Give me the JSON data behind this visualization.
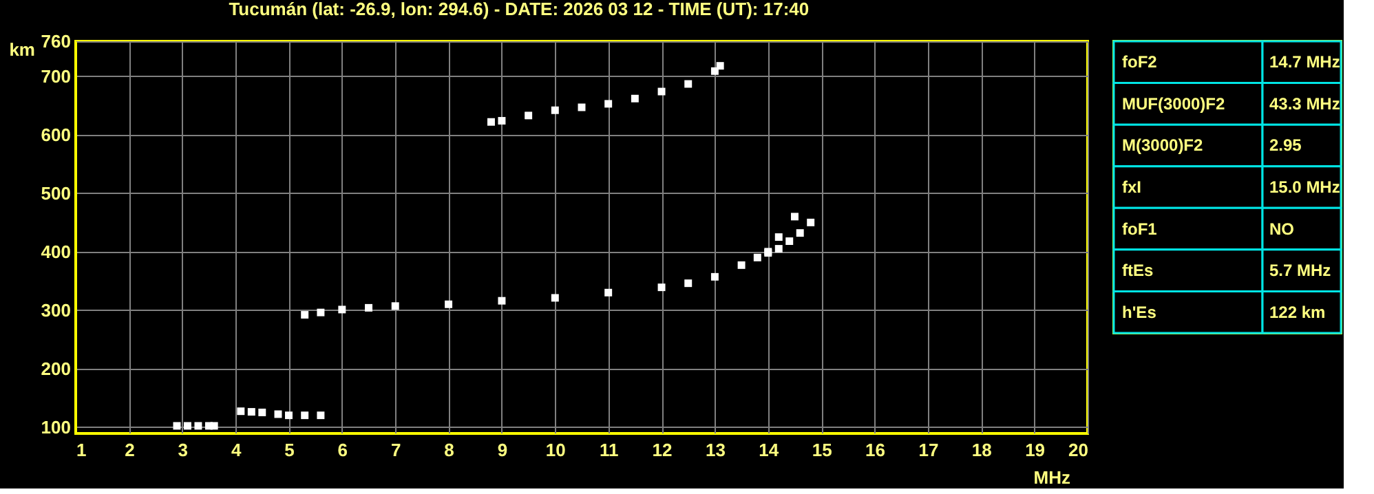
{
  "chart_data": [
    {
      "type": "scatter",
      "title": "Tucumán (lat: -26.9, lon: 294.6) - DATE: 2026 03 12 - TIME (UT): 17:40",
      "xlabel": "MHz",
      "ylabel": "km",
      "xlim": [
        1,
        20
      ],
      "xticks": [
        1,
        2,
        3,
        4,
        5,
        6,
        7,
        8,
        9,
        10,
        11,
        12,
        13,
        14,
        15,
        16,
        17,
        18,
        19,
        20
      ],
      "ylim": [
        89,
        760
      ],
      "yticks": [
        100,
        200,
        300,
        400,
        500,
        600,
        700,
        760
      ],
      "grid": true,
      "marker": "square",
      "legend": false,
      "series": [
        {
          "color": "#ffffff",
          "x": [
            2.9,
            3.1,
            3.3,
            3.5,
            3.6,
            4.1,
            4.3,
            4.5,
            4.8,
            5.0,
            5.3,
            5.6
          ],
          "values": [
            102,
            102,
            102,
            102,
            102,
            127,
            126,
            125,
            122,
            120,
            120,
            120
          ]
        },
        {
          "color": "#ffffff",
          "x": [
            5.3,
            5.6,
            6.0,
            6.5,
            7.0,
            8.0,
            9.0,
            10.0,
            11.0,
            12.0,
            12.5,
            13.0,
            13.5,
            13.8,
            14.0,
            14.2,
            14.5
          ],
          "values": [
            292,
            296,
            301,
            304,
            307,
            310,
            316,
            321,
            330,
            339,
            346,
            357,
            377,
            390,
            400,
            425,
            460
          ]
        },
        {
          "color": "#ffffff",
          "x": [
            14.0,
            14.2,
            14.4,
            14.6,
            14.8
          ],
          "values": [
            398,
            405,
            418,
            432,
            450
          ]
        },
        {
          "color": "#ffffff",
          "x": [
            8.8,
            9.0,
            9.5,
            10.0,
            10.5,
            11.0,
            11.5,
            12.0,
            12.5,
            13.0,
            13.1
          ],
          "values": [
            622,
            624,
            633,
            642,
            647,
            653,
            662,
            674,
            687,
            709,
            718
          ]
        }
      ]
    },
    {
      "type": "other",
      "categories": [
        "foF2",
        "MUF(3000)F2",
        "M(3000)F2",
        "fxI",
        "foF1",
        "ftEs",
        "h'Es"
      ],
      "value_labels": [
        "14.7 MHz",
        "43.3 MHz",
        "2.95",
        "15.0 MHz",
        "NO",
        "5.7 MHz",
        "122 km"
      ]
    }
  ]
}
